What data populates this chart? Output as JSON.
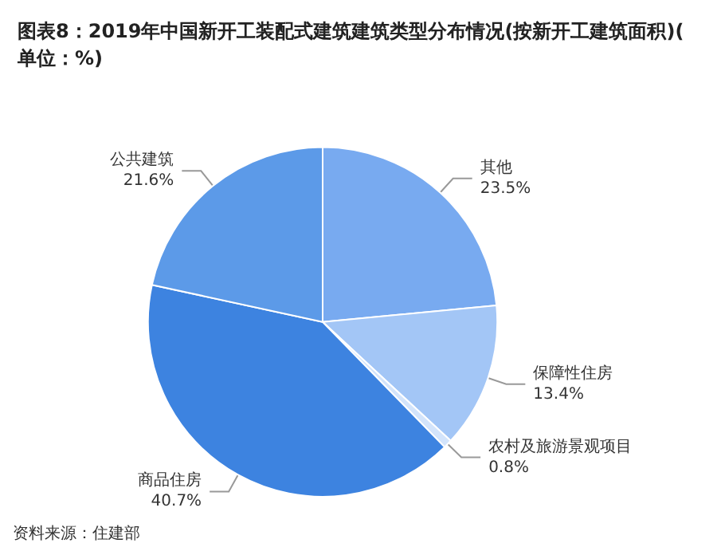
{
  "chart_data": {
    "type": "pie",
    "title": "图表8：2019年中国新开工装配式建筑建筑类型分布情况(按新开工建筑面积)(单位：%)",
    "categories": [
      "其他",
      "保障性住房",
      "农村及旅游景观项目",
      "商品住房",
      "公共建筑"
    ],
    "values": [
      23.5,
      13.4,
      0.8,
      40.7,
      21.6
    ],
    "value_labels": [
      "23.5%",
      "13.4%",
      "0.8%",
      "40.7%",
      "21.6%"
    ],
    "colors": [
      "#78aaf0",
      "#a3c6f6",
      "#d3e4fb",
      "#3d83e0",
      "#5c9ae8"
    ],
    "annotations": [
      "资料来源：住建部"
    ],
    "legend": false
  }
}
